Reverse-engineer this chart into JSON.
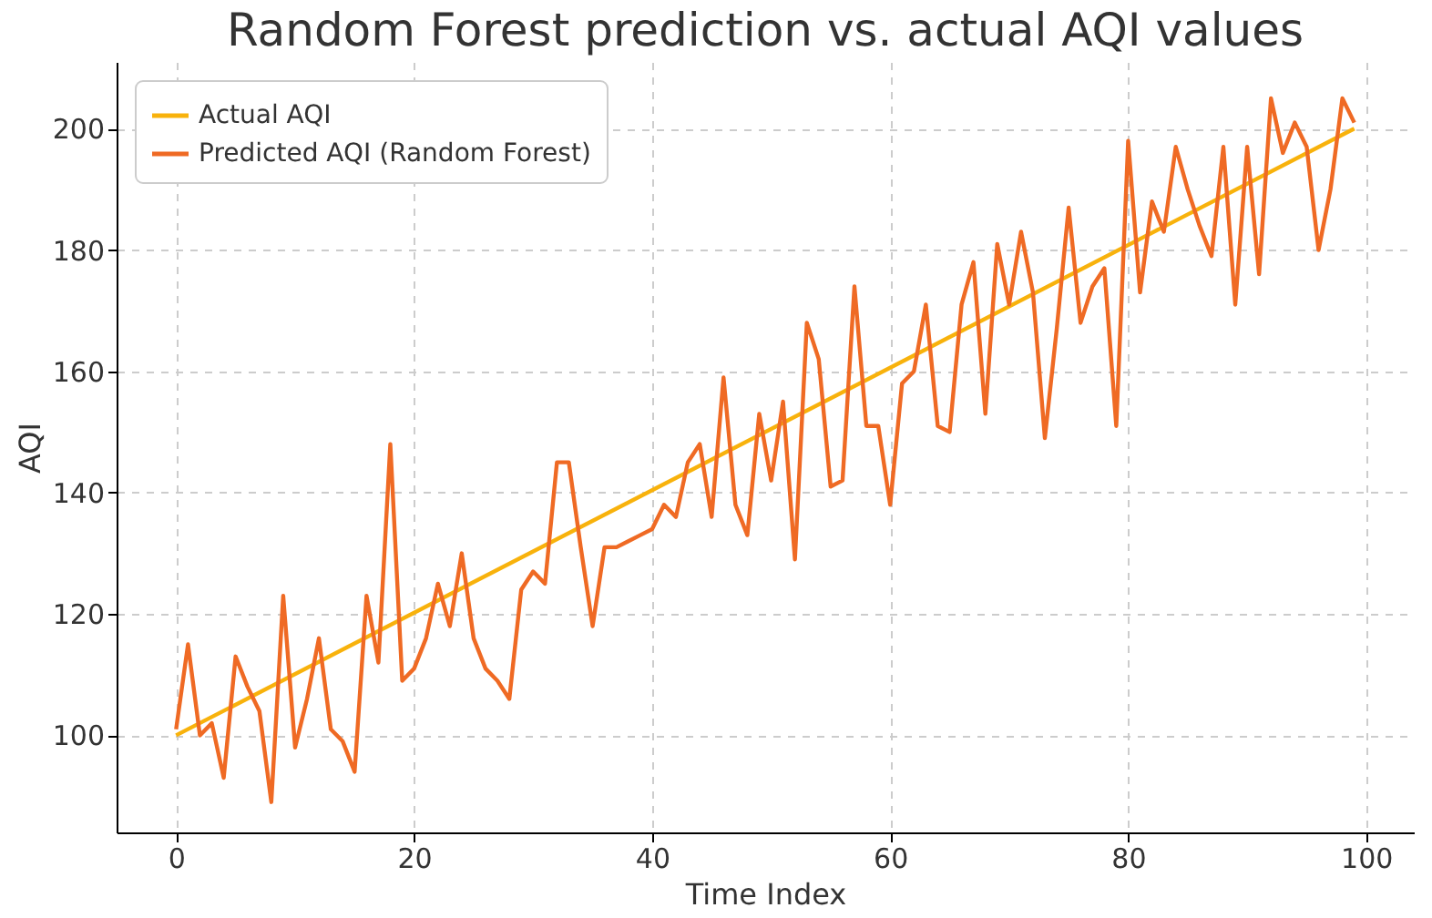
{
  "chart_data": {
    "type": "line",
    "title": "Random Forest prediction vs. actual AQI values",
    "xlabel": "Time Index",
    "ylabel": "AQI",
    "x": [
      0,
      1,
      2,
      3,
      4,
      5,
      6,
      7,
      8,
      9,
      10,
      11,
      12,
      13,
      14,
      15,
      16,
      17,
      18,
      19,
      20,
      21,
      22,
      23,
      24,
      25,
      26,
      27,
      28,
      29,
      30,
      31,
      32,
      33,
      34,
      35,
      36,
      37,
      38,
      39,
      40,
      41,
      42,
      43,
      44,
      45,
      46,
      47,
      48,
      49,
      50,
      51,
      52,
      53,
      54,
      55,
      56,
      57,
      58,
      59,
      60,
      61,
      62,
      63,
      64,
      65,
      66,
      67,
      68,
      69,
      70,
      71,
      72,
      73,
      74,
      75,
      76,
      77,
      78,
      79,
      80,
      81,
      82,
      83,
      84,
      85,
      86,
      87,
      88,
      89,
      90,
      91,
      92,
      93,
      94,
      95,
      96,
      97,
      98,
      99
    ],
    "series": [
      {
        "name": "Actual AQI",
        "color": "#f8b20c",
        "x": [
          0,
          99
        ],
        "values": [
          100,
          200
        ]
      },
      {
        "name": "Predicted AQI (Random Forest)",
        "color": "#ef6a24",
        "values": [
          101,
          115,
          100,
          102,
          93,
          113,
          108,
          104,
          89,
          123,
          98,
          106,
          116,
          101,
          99,
          94,
          123,
          112,
          148,
          109,
          111,
          116,
          125,
          118,
          130,
          116,
          111,
          109,
          106,
          124,
          127,
          125,
          145,
          145,
          131,
          118,
          131,
          131,
          132,
          133,
          134,
          138,
          136,
          145,
          148,
          136,
          159,
          138,
          133,
          153,
          142,
          155,
          129,
          168,
          162,
          141,
          142,
          174,
          151,
          151,
          138,
          158,
          160,
          171,
          151,
          150,
          171,
          178,
          153,
          181,
          171,
          183,
          173,
          149,
          167,
          187,
          168,
          174,
          177,
          151,
          198,
          173,
          188,
          183,
          197,
          190,
          184,
          179,
          197,
          171,
          197,
          176,
          205,
          196,
          201,
          197,
          180,
          190,
          205,
          201
        ]
      }
    ],
    "xlim": [
      -5,
      104
    ],
    "ylim": [
      84,
      211
    ],
    "xticks": [
      0,
      20,
      40,
      60,
      80,
      100
    ],
    "yticks": [
      100,
      120,
      140,
      160,
      180,
      200
    ],
    "grid": true,
    "legend": "top left",
    "line_style": "solid",
    "marker": "none"
  }
}
